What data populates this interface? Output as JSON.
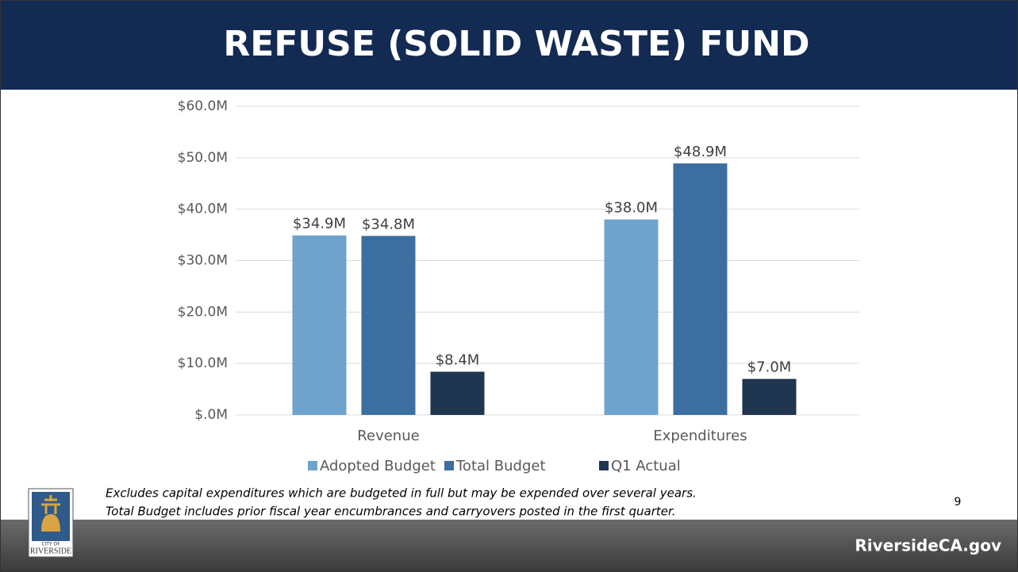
{
  "chart_data": {
    "type": "bar",
    "title": "REFUSE (SOLID WASTE) FUND",
    "categories": [
      "Revenue",
      "Expenditures"
    ],
    "series": [
      {
        "name": "Adopted Budget",
        "color": "#6fa3cc",
        "values": [
          34.9,
          38.0
        ],
        "value_labels": [
          "$34.9M",
          "$38.0M"
        ]
      },
      {
        "name": "Total Budget",
        "color": "#3c6e9f",
        "values": [
          34.8,
          48.9
        ],
        "value_labels": [
          "$34.8M",
          "$48.9M"
        ]
      },
      {
        "name": "Q1 Actual",
        "color": "#1f3550",
        "values": [
          8.4,
          7.0
        ],
        "value_labels": [
          "$8.4M",
          "$7.0M"
        ]
      }
    ],
    "ylim": [
      0,
      60
    ],
    "yticks": [
      {
        "value": 0,
        "label": "$.0M"
      },
      {
        "value": 10,
        "label": "$10.0M"
      },
      {
        "value": 20,
        "label": "$20.0M"
      },
      {
        "value": 30,
        "label": "$30.0M"
      },
      {
        "value": 40,
        "label": "$40.0M"
      },
      {
        "value": 50,
        "label": "$50.0M"
      },
      {
        "value": 60,
        "label": "$60.0M"
      }
    ],
    "grid": true,
    "legend": "bottom",
    "notes": [
      "Excludes capital expenditures which are budgeted in full but may be expended over several years.",
      "Total Budget includes prior fiscal year encumbrances and carryovers posted in the first quarter."
    ],
    "page_number": "9",
    "footer": "RiversideCA.gov",
    "logo": {
      "small": "CITY OF",
      "name": "RIVERSIDE"
    }
  }
}
